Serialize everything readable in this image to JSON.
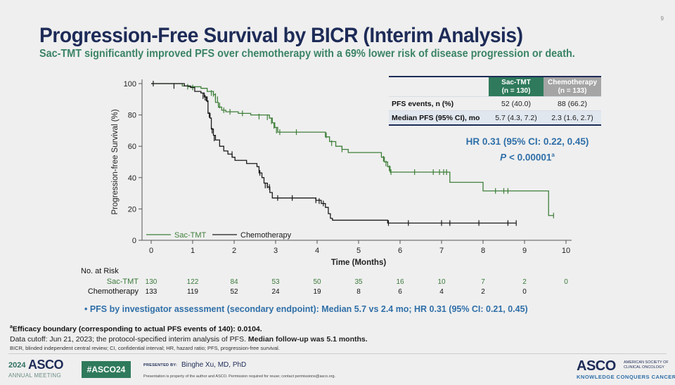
{
  "slide": {
    "page_number": "9",
    "title": "Progression-Free Survival by BICR (Interim Analysis)",
    "subtitle": "Sac-TMT significantly improved PFS over chemotherapy with a 69% lower risk of disease progression or death."
  },
  "summary_table": {
    "headers": [
      {
        "line1": "Sac-TMT",
        "line2": "(n = 130)",
        "color": "#2f7a5c"
      },
      {
        "line1": "Chemotherapy",
        "line2": "(n = 133)",
        "color": "#a5a5a5"
      }
    ],
    "rows": [
      {
        "label": "PFS events, n (%)",
        "values": [
          "52 (40.0)",
          "88 (66.2)"
        ]
      },
      {
        "label": "Median PFS (95% CI), mo",
        "values": [
          "5.7 (4.3, 7.2)",
          "2.3 (1.6, 2.7)"
        ]
      }
    ]
  },
  "hazard": {
    "hr_text": "HR 0.31 (95% CI: 0.22, 0.45)",
    "p_label": "P",
    "p_value": " < 0.00001",
    "p_sup": "a"
  },
  "chart_data": {
    "type": "line",
    "subtype": "kaplan-meier-step",
    "title": "",
    "xlabel": "Time (Months)",
    "ylabel": "Progression-free Survival (%)",
    "xlim": [
      0,
      10
    ],
    "ylim": [
      0,
      100
    ],
    "x_ticks": [
      0,
      1,
      2,
      3,
      4,
      5,
      6,
      7,
      8,
      9,
      10
    ],
    "y_ticks": [
      0,
      20,
      40,
      60,
      80,
      100
    ],
    "grid": false,
    "legend": {
      "position": "bottom-left",
      "entries": [
        "Sac-TMT",
        "Chemotherapy"
      ]
    },
    "series": [
      {
        "name": "Sac-TMT",
        "color": "#3f7f3a",
        "steps": [
          [
            0,
            100
          ],
          [
            0.75,
            98.5
          ],
          [
            0.9,
            98
          ],
          [
            1.2,
            97
          ],
          [
            1.35,
            95
          ],
          [
            1.5,
            93
          ],
          [
            1.55,
            88
          ],
          [
            1.62,
            85
          ],
          [
            1.7,
            83
          ],
          [
            1.8,
            82
          ],
          [
            2.1,
            81
          ],
          [
            2.4,
            80
          ],
          [
            2.85,
            78
          ],
          [
            2.92,
            75
          ],
          [
            2.98,
            72
          ],
          [
            3.05,
            69
          ],
          [
            4.2,
            66
          ],
          [
            4.3,
            63
          ],
          [
            4.45,
            60
          ],
          [
            4.6,
            58
          ],
          [
            4.75,
            56
          ],
          [
            5.55,
            53
          ],
          [
            5.62,
            50
          ],
          [
            5.7,
            47
          ],
          [
            5.76,
            43.5
          ],
          [
            7.2,
            37
          ],
          [
            8.0,
            31.5
          ],
          [
            9.58,
            15.8
          ],
          [
            9.7,
            15.8
          ]
        ],
        "censors": [
          [
            0.88,
            98
          ],
          [
            1.0,
            97.5
          ],
          [
            1.45,
            94
          ],
          [
            1.5,
            93.5
          ],
          [
            1.55,
            92
          ],
          [
            1.6,
            90
          ],
          [
            1.65,
            86
          ],
          [
            1.75,
            83
          ],
          [
            1.9,
            82
          ],
          [
            2.2,
            81
          ],
          [
            2.6,
            79
          ],
          [
            2.8,
            78.5
          ],
          [
            2.9,
            76
          ],
          [
            2.96,
            73
          ],
          [
            3.02,
            70
          ],
          [
            3.1,
            69
          ],
          [
            3.5,
            69
          ],
          [
            4.22,
            67
          ],
          [
            4.35,
            62
          ],
          [
            4.6,
            58
          ],
          [
            5.6,
            52
          ],
          [
            5.66,
            49
          ],
          [
            5.74,
            46
          ],
          [
            5.78,
            43.5
          ],
          [
            6.35,
            43.5
          ],
          [
            6.8,
            43.5
          ],
          [
            6.95,
            43.5
          ],
          [
            7.05,
            43.5
          ],
          [
            7.12,
            43.5
          ],
          [
            8.3,
            31.5
          ],
          [
            8.5,
            31.5
          ],
          [
            8.6,
            31.5
          ],
          [
            9.7,
            15.8
          ]
        ]
      },
      {
        "name": "Chemotherapy",
        "color": "#1a1a1a",
        "steps": [
          [
            0,
            100
          ],
          [
            0.8,
            98.5
          ],
          [
            0.95,
            97.5
          ],
          [
            1.05,
            95
          ],
          [
            1.2,
            94
          ],
          [
            1.28,
            91.5
          ],
          [
            1.33,
            89
          ],
          [
            1.37,
            81
          ],
          [
            1.42,
            78
          ],
          [
            1.45,
            71
          ],
          [
            1.5,
            67
          ],
          [
            1.55,
            64
          ],
          [
            1.65,
            60
          ],
          [
            1.75,
            57
          ],
          [
            1.85,
            55
          ],
          [
            1.95,
            53
          ],
          [
            2.02,
            51
          ],
          [
            2.3,
            49
          ],
          [
            2.55,
            47
          ],
          [
            2.6,
            43
          ],
          [
            2.67,
            40
          ],
          [
            2.72,
            36.5
          ],
          [
            2.8,
            34
          ],
          [
            2.86,
            30.5
          ],
          [
            2.92,
            27
          ],
          [
            3.97,
            25.5
          ],
          [
            4.1,
            23.5
          ],
          [
            4.2,
            21
          ],
          [
            4.27,
            17
          ],
          [
            4.32,
            14
          ],
          [
            4.37,
            12.8
          ],
          [
            5.7,
            11
          ],
          [
            8.8,
            11
          ]
        ],
        "censors": [
          [
            0.05,
            100
          ],
          [
            0.55,
            98.5
          ],
          [
            1.25,
            92
          ],
          [
            1.3,
            91
          ],
          [
            1.35,
            90
          ],
          [
            1.4,
            80
          ],
          [
            1.47,
            70
          ],
          [
            1.52,
            65
          ],
          [
            1.95,
            55
          ],
          [
            2.62,
            43
          ],
          [
            2.75,
            35
          ],
          [
            2.8,
            35
          ],
          [
            2.85,
            34
          ],
          [
            3.05,
            27
          ],
          [
            3.4,
            27
          ],
          [
            3.97,
            25.5
          ],
          [
            4.05,
            25
          ],
          [
            4.15,
            23.5
          ],
          [
            5.72,
            11
          ],
          [
            6.2,
            11
          ],
          [
            7.0,
            11
          ],
          [
            7.2,
            11
          ],
          [
            7.9,
            11
          ],
          [
            8.6,
            11
          ],
          [
            8.8,
            11
          ]
        ]
      }
    ],
    "number_at_risk": {
      "title": "No. at Risk",
      "timepoints": [
        0,
        1,
        2,
        3,
        4,
        5,
        6,
        7,
        8,
        9,
        10
      ],
      "rows": [
        {
          "label": "Sac-TMT",
          "color": "#3b7a3b",
          "values": [
            130,
            122,
            84,
            53,
            50,
            35,
            16,
            10,
            7,
            2,
            0
          ]
        },
        {
          "label": "Chemotherapy",
          "color": "#111111",
          "values": [
            133,
            119,
            52,
            24,
            19,
            8,
            6,
            4,
            2,
            0
          ]
        }
      ]
    }
  },
  "bullet": "PFS by investigator assessment (secondary endpoint): Median 5.7 vs 2.4 mo; HR 0.31 (95% CI: 0.21, 0.45)",
  "footnotes": {
    "efficacy_sup": "a",
    "efficacy": "Efficacy boundary (corresponding to actual PFS events of 140): 0.0104.",
    "cutoff_plain": "Data cutoff: Jun 21, 2023; the protocol-specified interim analysis of PFS. ",
    "cutoff_bold": "Median follow-up was 5.1 months.",
    "abbreviations": "BICR, blinded independent central review; CI, confidential interval; HR, hazard ratio; PFS, progression-free survival."
  },
  "footer": {
    "year": "2024",
    "asco": "ASCO",
    "annual_meeting": "ANNUAL MEETING",
    "hashtag": "#ASCO24",
    "presented_by_label": "PRESENTED BY:",
    "presenter": "Binghe Xu, MD, PhD",
    "disclaimer": "Presentation is property of the author and ASCO. Permission required for reuse; contact permissions@asco.org.",
    "logo": "ASCO",
    "society_line1": "AMERICAN SOCIETY OF",
    "society_line2": "CLINICAL ONCOLOGY",
    "tagline": "KNOWLEDGE CONQUERS CANCER"
  }
}
